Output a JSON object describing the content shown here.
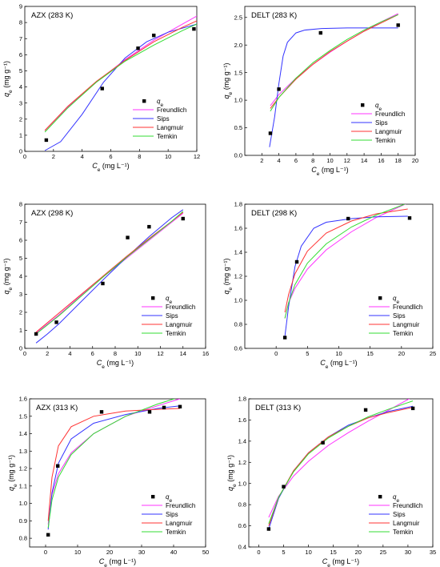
{
  "chart_data": [
    {
      "type": "scatter",
      "title": "AZX (283 K)",
      "xlabel": "Ce (mg L⁻¹)",
      "ylabel": "qe (mg g⁻¹)",
      "xlim": [
        0,
        12
      ],
      "ylim": [
        0,
        9
      ],
      "xticks": [
        0,
        2,
        4,
        6,
        8,
        10,
        12
      ],
      "yticks": [
        0,
        1,
        2,
        3,
        4,
        5,
        6,
        7,
        8,
        9
      ],
      "legend_position": "bottom-right",
      "points": {
        "name": "qe",
        "x": [
          1.5,
          5.4,
          7.9,
          9.0,
          11.8
        ],
        "y": [
          0.7,
          3.9,
          6.4,
          7.2,
          7.6
        ]
      },
      "fits": [
        {
          "name": "Freundlich",
          "color": "#ff33ff",
          "x": [
            1.4,
            3,
            5,
            7,
            9,
            11,
            12
          ],
          "y": [
            1.3,
            2.75,
            4.3,
            5.7,
            6.9,
            7.9,
            8.4
          ]
        },
        {
          "name": "Sips",
          "color": "#3333ff",
          "x": [
            1.4,
            2.5,
            4,
            5.5,
            7,
            8.5,
            10,
            12
          ],
          "y": [
            0.05,
            0.6,
            2.3,
            4.3,
            5.8,
            6.8,
            7.4,
            7.9
          ]
        },
        {
          "name": "Langmuir",
          "color": "#ff3333",
          "x": [
            1.4,
            3,
            5,
            7,
            9,
            11,
            12
          ],
          "y": [
            1.3,
            2.8,
            4.35,
            5.65,
            6.8,
            7.7,
            8.1
          ]
        },
        {
          "name": "Temkin",
          "color": "#33dd33",
          "x": [
            1.4,
            3,
            5,
            7,
            9,
            11,
            12
          ],
          "y": [
            1.2,
            2.7,
            4.3,
            5.6,
            6.6,
            7.5,
            7.9
          ]
        }
      ]
    },
    {
      "type": "scatter",
      "title": "DELT (283 K)",
      "xlabel": "Ce (mg L⁻¹)",
      "ylabel": "qe (mg g⁻¹)",
      "xlim": [
        0,
        20
      ],
      "ylim": [
        0,
        2.7
      ],
      "xticks": [
        2,
        4,
        6,
        8,
        10,
        12,
        14,
        16,
        18,
        20
      ],
      "yticks": [
        0.0,
        0.5,
        1.0,
        1.5,
        2.0,
        2.5
      ],
      "yticklabels": [
        "0.0",
        "0.5",
        "1.0",
        "1.5",
        "2.0",
        "2.5"
      ],
      "legend_position": "bottom-right",
      "points": {
        "name": "qe",
        "x": [
          3.0,
          4.0,
          8.9,
          18.0
        ],
        "y": [
          0.4,
          1.2,
          2.22,
          2.36
        ]
      },
      "fits": [
        {
          "name": "Freundlich",
          "color": "#ff33ff",
          "x": [
            3,
            4,
            6,
            8,
            10,
            12,
            14,
            16,
            18
          ],
          "y": [
            0.9,
            1.1,
            1.4,
            1.65,
            1.87,
            2.07,
            2.25,
            2.42,
            2.57
          ]
        },
        {
          "name": "Sips",
          "color": "#3333ff",
          "x": [
            2.9,
            3.5,
            4,
            4.5,
            5,
            6,
            7,
            9,
            12,
            18
          ],
          "y": [
            0.15,
            0.7,
            1.3,
            1.8,
            2.05,
            2.22,
            2.27,
            2.3,
            2.31,
            2.31
          ]
        },
        {
          "name": "Langmuir",
          "color": "#ff3333",
          "x": [
            3,
            4,
            6,
            8,
            10,
            12,
            14,
            16,
            18
          ],
          "y": [
            0.85,
            1.05,
            1.38,
            1.65,
            1.88,
            2.07,
            2.25,
            2.4,
            2.55
          ]
        },
        {
          "name": "Temkin",
          "color": "#33dd33",
          "x": [
            3,
            4,
            6,
            8,
            10,
            12,
            14,
            16,
            18
          ],
          "y": [
            0.8,
            1.05,
            1.4,
            1.68,
            1.9,
            2.1,
            2.27,
            2.42,
            2.55
          ]
        }
      ]
    },
    {
      "type": "scatter",
      "title": "AZX (298 K)",
      "xlabel": "Ce (mg L⁻¹)",
      "ylabel": "qe (mg g⁻¹)",
      "xlim": [
        0,
        16
      ],
      "ylim": [
        0,
        8
      ],
      "xticks": [
        0,
        2,
        4,
        6,
        8,
        10,
        12,
        14,
        16
      ],
      "yticks": [
        0,
        1,
        2,
        3,
        4,
        5,
        6,
        7,
        8
      ],
      "legend_position": "bottom-right",
      "points": {
        "name": "qe",
        "x": [
          1.0,
          2.8,
          6.9,
          9.1,
          11.0,
          14.0
        ],
        "y": [
          0.8,
          1.45,
          3.6,
          6.15,
          6.75,
          7.2
        ]
      },
      "fits": [
        {
          "name": "Freundlich",
          "color": "#ff33ff",
          "x": [
            1,
            3,
            5,
            7,
            9,
            11,
            13,
            14
          ],
          "y": [
            0.85,
            1.85,
            2.95,
            4.0,
            5.0,
            6.0,
            7.0,
            7.5
          ]
        },
        {
          "name": "Sips",
          "color": "#3333ff",
          "x": [
            1,
            2,
            3,
            5,
            7,
            9,
            11,
            13,
            14
          ],
          "y": [
            0.3,
            0.8,
            1.35,
            2.6,
            3.85,
            5.05,
            6.2,
            7.25,
            7.7
          ]
        },
        {
          "name": "Langmuir",
          "color": "#ff3333",
          "x": [
            1,
            3,
            5,
            7,
            9,
            11,
            13,
            14
          ],
          "y": [
            0.9,
            1.95,
            3.0,
            4.05,
            5.1,
            6.1,
            7.05,
            7.55
          ]
        },
        {
          "name": "Temkin",
          "color": "#33dd33",
          "x": [
            1,
            3,
            5,
            7,
            9,
            11,
            13,
            14
          ],
          "y": [
            0.8,
            1.8,
            2.9,
            4.0,
            5.05,
            6.05,
            7.05,
            7.6
          ]
        }
      ]
    },
    {
      "type": "scatter",
      "title": "DELT (298 K)",
      "xlabel": "Ce (mg L⁻¹)",
      "ylabel": "qe (mg g⁻¹)",
      "xlim": [
        -5,
        25
      ],
      "ylim": [
        0.6,
        1.8
      ],
      "xticks": [
        0,
        5,
        10,
        15,
        20,
        25
      ],
      "yticks": [
        0.6,
        0.8,
        1.0,
        1.2,
        1.4,
        1.6,
        1.8
      ],
      "yticklabels": [
        "0.6",
        "0.8",
        "1.0",
        "1.2",
        "1.4",
        "1.6",
        "1.8"
      ],
      "legend_position": "bottom-right",
      "points": {
        "name": "qe",
        "x": [
          1.4,
          3.3,
          11.5,
          21.3
        ],
        "y": [
          0.69,
          1.32,
          1.68,
          1.685
        ]
      },
      "fits": [
        {
          "name": "Freundlich",
          "color": "#ff33ff",
          "x": [
            1.4,
            2,
            3,
            5,
            8,
            12,
            16,
            21
          ],
          "y": [
            0.85,
            0.98,
            1.1,
            1.26,
            1.42,
            1.57,
            1.69,
            1.81
          ]
        },
        {
          "name": "Sips",
          "color": "#3333ff",
          "x": [
            1.4,
            2,
            3,
            4,
            6,
            8,
            12,
            16,
            21
          ],
          "y": [
            0.7,
            0.95,
            1.28,
            1.45,
            1.6,
            1.65,
            1.68,
            1.695,
            1.7
          ]
        },
        {
          "name": "Langmuir",
          "color": "#ff3333",
          "x": [
            1.4,
            2,
            3,
            5,
            8,
            12,
            16,
            21
          ],
          "y": [
            0.9,
            1.05,
            1.22,
            1.41,
            1.56,
            1.66,
            1.72,
            1.76
          ]
        },
        {
          "name": "Temkin",
          "color": "#33dd33",
          "x": [
            1.4,
            2,
            3,
            5,
            8,
            12,
            16,
            21
          ],
          "y": [
            0.85,
            0.98,
            1.13,
            1.31,
            1.47,
            1.61,
            1.71,
            1.81
          ]
        }
      ]
    },
    {
      "type": "scatter",
      "title": "AZX (313 K)",
      "xlabel": "Ce (mg L⁻¹)",
      "ylabel": "qe (mg g⁻¹)",
      "xlim": [
        -5,
        50
      ],
      "ylim": [
        0.75,
        1.6
      ],
      "xticks": [
        0,
        10,
        20,
        30,
        40,
        50
      ],
      "yticks": [
        0.8,
        0.9,
        1.0,
        1.1,
        1.2,
        1.3,
        1.4,
        1.5,
        1.6
      ],
      "yticklabels": [
        "0.8",
        "0.9",
        "1.0",
        "1.1",
        "1.2",
        "1.3",
        "1.4",
        "1.5",
        "1.6"
      ],
      "legend_position": "bottom-right",
      "points": {
        "name": "qe",
        "x": [
          0.8,
          3.8,
          17.5,
          32.5,
          37.0,
          42.0
        ],
        "y": [
          0.82,
          1.215,
          1.525,
          1.525,
          1.55,
          1.555
        ]
      },
      "fits": [
        {
          "name": "Freundlich",
          "color": "#ff33ff",
          "x": [
            0.8,
            2,
            4,
            8,
            15,
            25,
            35,
            42
          ],
          "y": [
            0.88,
            1.05,
            1.17,
            1.29,
            1.4,
            1.5,
            1.56,
            1.6
          ]
        },
        {
          "name": "Sips",
          "color": "#3333ff",
          "x": [
            0.8,
            2,
            4,
            8,
            15,
            25,
            35,
            42
          ],
          "y": [
            0.85,
            1.06,
            1.23,
            1.37,
            1.46,
            1.51,
            1.545,
            1.56
          ]
        },
        {
          "name": "Langmuir",
          "color": "#ff3333",
          "x": [
            0.8,
            2,
            4,
            8,
            15,
            25,
            35,
            42
          ],
          "y": [
            0.9,
            1.15,
            1.33,
            1.44,
            1.5,
            1.53,
            1.54,
            1.545
          ]
        },
        {
          "name": "Temkin",
          "color": "#33dd33",
          "x": [
            0.8,
            2,
            4,
            8,
            15,
            25,
            35,
            42
          ],
          "y": [
            0.86,
            1.02,
            1.15,
            1.28,
            1.4,
            1.5,
            1.57,
            1.61
          ]
        }
      ]
    },
    {
      "type": "scatter",
      "title": "DELT (313 K)",
      "xlabel": "Ce (mg L⁻¹)",
      "ylabel": "qe (mg g⁻¹)",
      "xlim": [
        -2,
        35
      ],
      "ylim": [
        0.4,
        1.8
      ],
      "xticks": [
        0,
        5,
        10,
        15,
        20,
        25,
        30,
        35
      ],
      "yticks": [
        0.4,
        0.6,
        0.8,
        1.0,
        1.2,
        1.4,
        1.6,
        1.8
      ],
      "yticklabels": [
        "0.4",
        "0.6",
        "0.8",
        "1.0",
        "1.2",
        "1.4",
        "1.6",
        "1.8"
      ],
      "legend_position": "bottom-right",
      "points": {
        "name": "qe",
        "x": [
          2.0,
          5.0,
          12.9,
          21.5,
          31.0
        ],
        "y": [
          0.57,
          0.97,
          1.385,
          1.695,
          1.71
        ]
      },
      "fits": [
        {
          "name": "Freundlich",
          "color": "#ff33ff",
          "x": [
            2,
            4,
            7,
            10,
            14,
            18,
            22,
            26,
            31
          ],
          "y": [
            0.68,
            0.88,
            1.07,
            1.21,
            1.36,
            1.48,
            1.59,
            1.69,
            1.82
          ]
        },
        {
          "name": "Sips",
          "color": "#3333ff",
          "x": [
            2,
            4,
            7,
            10,
            14,
            18,
            22,
            26,
            31
          ],
          "y": [
            0.57,
            0.86,
            1.12,
            1.29,
            1.44,
            1.55,
            1.62,
            1.68,
            1.73
          ]
        },
        {
          "name": "Langmuir",
          "color": "#ff3333",
          "x": [
            2,
            4,
            7,
            10,
            14,
            18,
            22,
            26,
            31
          ],
          "y": [
            0.6,
            0.87,
            1.12,
            1.29,
            1.44,
            1.54,
            1.62,
            1.67,
            1.72
          ]
        },
        {
          "name": "Temkin",
          "color": "#33dd33",
          "x": [
            2,
            4,
            7,
            10,
            14,
            18,
            22,
            26,
            31
          ],
          "y": [
            0.62,
            0.87,
            1.11,
            1.28,
            1.43,
            1.54,
            1.63,
            1.7,
            1.78
          ]
        }
      ]
    }
  ]
}
